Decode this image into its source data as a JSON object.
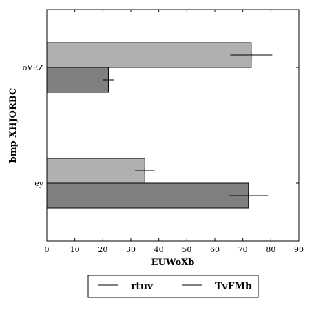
{
  "chart_data": {
    "type": "bar",
    "orientation": "horizontal",
    "categories": [
      "oVEZ",
      "ey"
    ],
    "series": [
      {
        "name": "rtuv",
        "values": [
          73,
          35
        ],
        "errors": [
          7.5,
          3.5
        ],
        "color": "#b0b0b0"
      },
      {
        "name": "TvFMb",
        "values": [
          22,
          72
        ],
        "errors": [
          2,
          7
        ],
        "color": "#808080"
      }
    ],
    "xlabel": "EUWoXb",
    "ylabel": "bmp  XHJORBC",
    "xlim": [
      0,
      90
    ],
    "xticks": [
      "0",
      "10",
      "20",
      "30",
      "40",
      "50",
      "60",
      "70",
      "80",
      "90"
    ],
    "grid": false,
    "legend_position": "bottom-outside"
  }
}
